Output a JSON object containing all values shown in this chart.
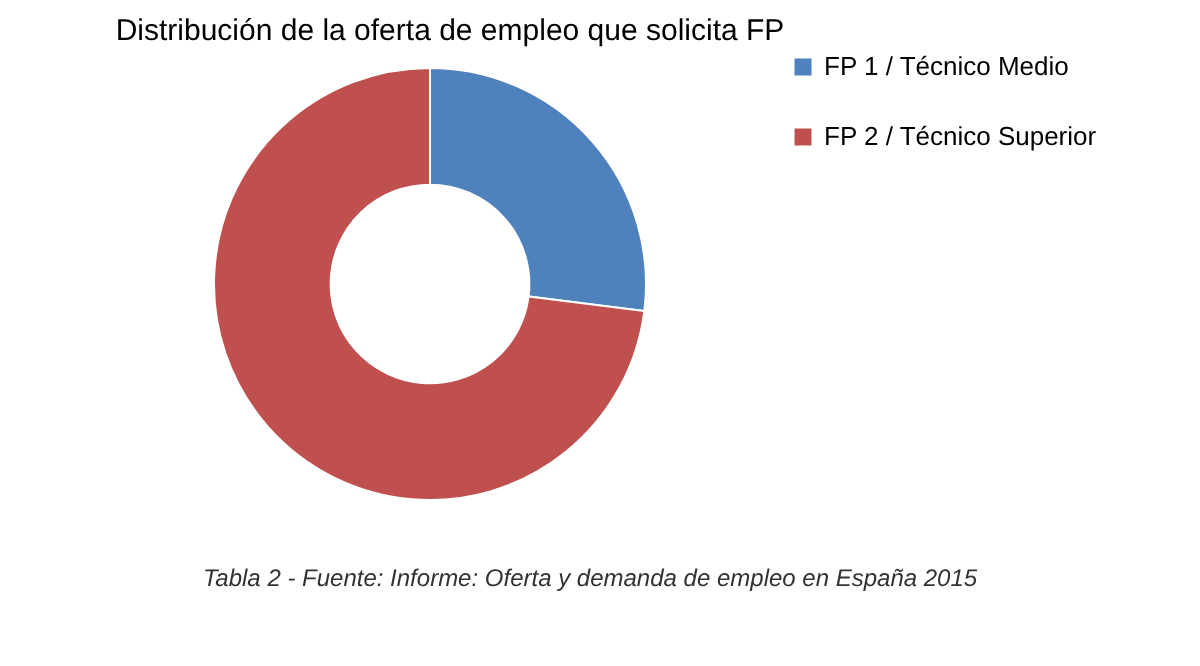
{
  "chart_data": {
    "type": "donut",
    "title": "Distribución de la oferta de empleo que solicita FP",
    "categories": [
      "FP 1 / Técnico Medio",
      "FP 2 / Técnico Superior"
    ],
    "values": [
      27,
      73
    ],
    "colors": [
      "#4f81bd",
      "#c0504d"
    ],
    "legend": "right",
    "annotations": [
      "Tabla 2 - Fuente: Informe: Oferta y demanda de empleo en España 2015"
    ]
  }
}
